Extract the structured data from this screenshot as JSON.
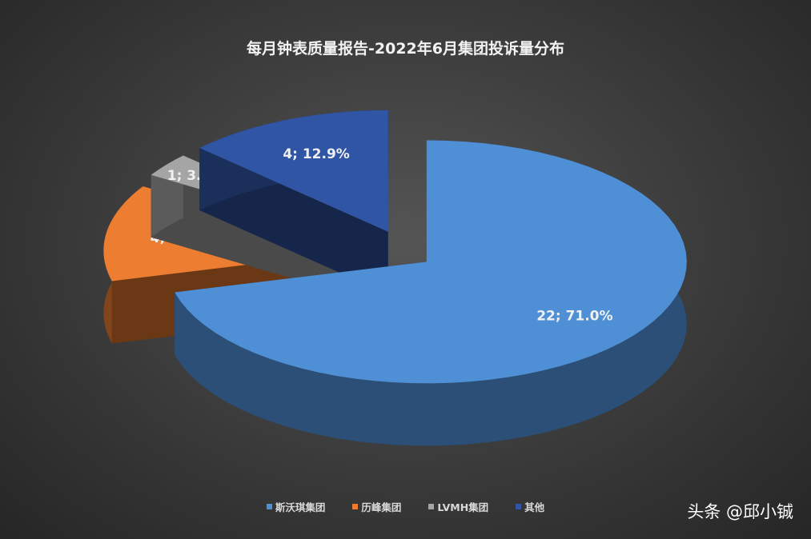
{
  "chart_data": {
    "type": "pie",
    "style": "3d-exploded",
    "title": "每月钟表质量报告-2022年6月集团投诉量分布",
    "categories": [
      "斯沃琪集团",
      "历峰集团",
      "LVMH集团",
      "其他"
    ],
    "values": [
      22,
      4,
      1,
      4
    ],
    "percents": [
      71.0,
      12.9,
      3.2,
      12.9
    ],
    "data_labels": [
      "22; 71.0%",
      "4; 12.9%",
      "1; 3.2%",
      "4; 12.9%"
    ],
    "colors": [
      "#4f8fd6",
      "#ed7d31",
      "#a5a5a5",
      "#2f55a4"
    ],
    "legend_position": "bottom"
  },
  "watermark": "头条 @邱小铖"
}
